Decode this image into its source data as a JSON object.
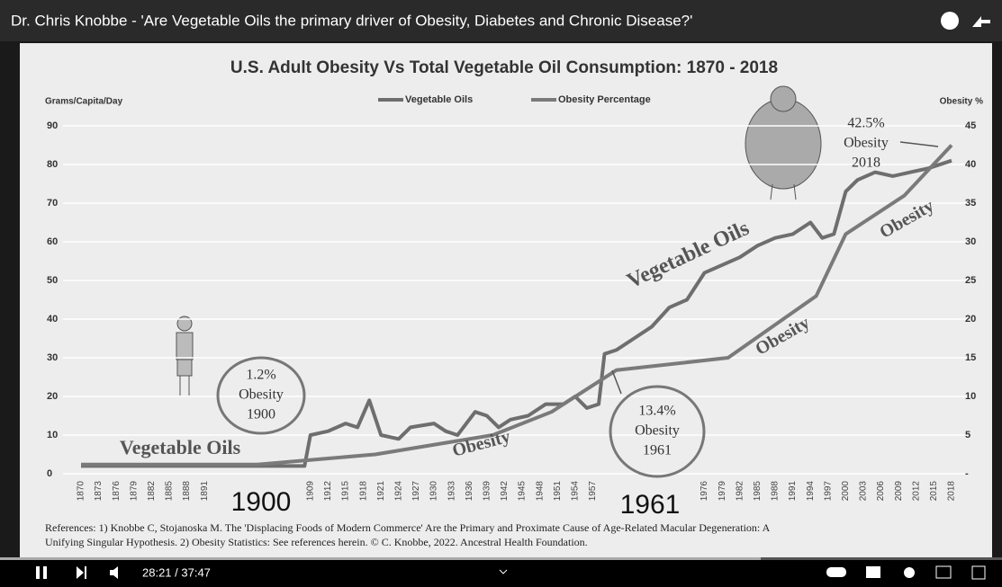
{
  "player": {
    "title": "Dr. Chris Knobbe - 'Are Vegetable Oils the primary driver of Obesity, Diabetes and Chronic Disease?'",
    "time": "28:21 / 37:47"
  },
  "chart_data": {
    "type": "line",
    "title": "U.S. Adult Obesity Vs Total Vegetable Oil Consumption: 1870 - 2018",
    "y_label": "Grams/Capita/Day",
    "y2_label": "Obesity %",
    "xlim": [
      1870,
      2018
    ],
    "xticks": [
      1870,
      1873,
      1876,
      1879,
      1882,
      1885,
      1888,
      1891,
      1909,
      1912,
      1915,
      1918,
      1921,
      1924,
      1927,
      1930,
      1933,
      1936,
      1939,
      1942,
      1945,
      1948,
      1951,
      1954,
      1957,
      1976,
      1979,
      1982,
      1985,
      1988,
      1991,
      1994,
      1997,
      2000,
      2003,
      2006,
      2009,
      2012,
      2015,
      2018
    ],
    "ylim": [
      0,
      90
    ],
    "yticks": [
      0,
      10,
      20,
      30,
      40,
      50,
      60,
      70,
      80,
      90
    ],
    "y2lim": [
      0,
      45
    ],
    "y2ticks": [
      {
        "value": 0,
        "label": "-"
      },
      5,
      10,
      15,
      20,
      25,
      30,
      35,
      40,
      45
    ],
    "grid": true,
    "series": [
      {
        "name": "Vegetable Oils",
        "color": "#6e6e6e",
        "x": [
          1870,
          1900,
          1908,
          1909,
          1912,
          1915,
          1917,
          1919,
          1921,
          1924,
          1926,
          1930,
          1932,
          1934,
          1937,
          1939,
          1941,
          1943,
          1946,
          1949,
          1952,
          1954,
          1956,
          1958,
          1959,
          1961,
          1964,
          1967,
          1970,
          1973,
          1976,
          1979,
          1982,
          1985,
          1988,
          1991,
          1994,
          1996,
          1998,
          2000,
          2002,
          2005,
          2008,
          2011,
          2014,
          2018
        ],
        "values": [
          2,
          2,
          2,
          10,
          11,
          13,
          12,
          19,
          10,
          9,
          12,
          13,
          11,
          10,
          16,
          15,
          12,
          14,
          15,
          18,
          18,
          20,
          17,
          18,
          31,
          32,
          35,
          38,
          43,
          45,
          52,
          54,
          56,
          59,
          61,
          62,
          65,
          61,
          62,
          73,
          76,
          78,
          77,
          78,
          79,
          81
        ]
      },
      {
        "name": "Obesity Percentage",
        "color": "#7a7a7a",
        "axis": "y2",
        "x": [
          1870,
          1900,
          1920,
          1940,
          1950,
          1961,
          1980,
          1995,
          2000,
          2010,
          2018
        ],
        "values": [
          1.2,
          1.2,
          2.5,
          5,
          8,
          13.4,
          15,
          23,
          31,
          36,
          42.5
        ]
      }
    ],
    "annotations": [
      {
        "text": "Vegetable Oils"
      },
      {
        "text": "Vegetable Oils"
      },
      {
        "text": "Obesity"
      },
      {
        "text": "Obesity"
      },
      {
        "text": "Obesity"
      },
      {
        "text": "1900"
      },
      {
        "text": "1961"
      },
      {
        "lines": [
          "1.2%",
          "Obesity",
          "1900"
        ]
      },
      {
        "lines": [
          "13.4%",
          "Obesity",
          "1961"
        ]
      },
      {
        "lines": [
          "42.5%",
          "Obesity",
          "2018"
        ]
      }
    ],
    "references": [
      "References: 1) Knobbe C,  Stojanoska M. The 'Displacing Foods of Modern Commerce' Are the Primary and Proximate Cause of Age-Related Macular Degeneration: A",
      "Unifying Singular Hypothesis. 2) Obesity Statistics: See references herein. © C. Knobbe, 2022. Ancestral Health Foundation."
    ]
  }
}
